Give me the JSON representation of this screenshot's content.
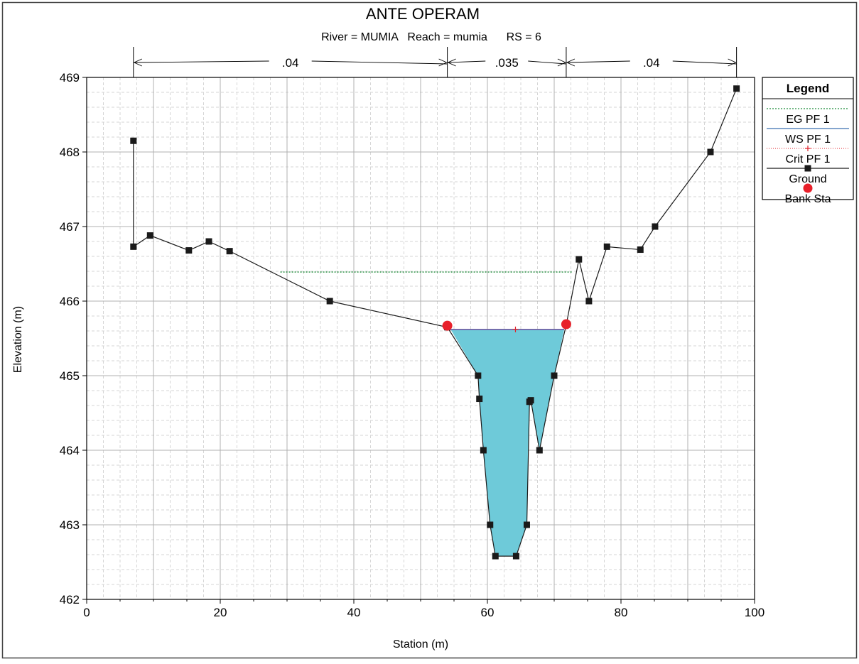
{
  "chart_data": {
    "type": "line",
    "title": "ANTE OPERAM",
    "subtitle": "River = MUMIA   Reach = mumia      RS = 6",
    "xlabel": "Station (m)",
    "ylabel": "Elevation (m)",
    "xlim": [
      0,
      100
    ],
    "ylim": [
      462,
      469
    ],
    "x_ticks": [
      "0",
      "20",
      "40",
      "60",
      "80",
      "100"
    ],
    "y_ticks": [
      "462",
      "463",
      "464",
      "465",
      "466",
      "467",
      "468",
      "469"
    ],
    "grid": true,
    "legend_position": "right",
    "legend_title": "Legend",
    "legend": [
      {
        "label": "EG PF 1",
        "color": "#1e8c3a",
        "style": "dotted"
      },
      {
        "label": "WS PF 1",
        "color": "#3a6fb0",
        "style": "solid"
      },
      {
        "label": "Crit PF 1",
        "color": "#e0202a",
        "style": "dotted-plus"
      },
      {
        "label": "Ground",
        "color": "#1a1a1a",
        "style": "solid-square"
      },
      {
        "label": "Bank Sta",
        "color": "#e8202a",
        "style": "circle"
      }
    ],
    "mannings": [
      {
        "label": ".04",
        "from": 7,
        "to": 54
      },
      {
        "label": ".035",
        "from": 54,
        "to": 71.8
      },
      {
        "label": ".04",
        "from": 71.8,
        "to": 97.3
      }
    ],
    "series": [
      {
        "name": "Ground",
        "x": [
          7,
          7,
          9.5,
          15.3,
          18.3,
          21.4,
          36.4,
          54,
          58.6,
          58.8,
          59.4,
          60.4,
          61.2,
          64.3,
          65.9,
          66.3,
          66.5,
          67.8,
          70,
          71.8,
          73.7,
          75.2,
          77.9,
          82.9,
          85.1,
          93.4,
          97.3
        ],
        "y": [
          468.15,
          466.73,
          466.88,
          466.68,
          466.8,
          466.67,
          466.0,
          465.65,
          465.0,
          464.69,
          464.0,
          463.0,
          462.58,
          462.58,
          463.0,
          464.65,
          464.67,
          464.0,
          465.0,
          465.68,
          466.56,
          466.0,
          466.73,
          466.69,
          467.0,
          468.0,
          468.85
        ]
      },
      {
        "name": "WS PF 1",
        "x": [
          54.5,
          71.5
        ],
        "y": [
          465.62,
          465.62
        ]
      },
      {
        "name": "EG PF 1",
        "x": [
          29,
          72.8
        ],
        "y": [
          466.39,
          466.39
        ]
      },
      {
        "name": "Crit PF 1",
        "x": [
          64.2
        ],
        "y": [
          465.62
        ]
      },
      {
        "name": "Bank Sta",
        "x": [
          54,
          71.8
        ],
        "y": [
          465.67,
          465.69
        ]
      }
    ]
  },
  "colors": {
    "water": "#6ecad9",
    "eg": "#1e8c3a",
    "ws": "#6a4c9c",
    "crit": "#e0202a",
    "ground": "#1a1a1a",
    "bank": "#e8202a",
    "grid_major": "#b0b0b0",
    "grid_minor": "#d6d6d6"
  }
}
